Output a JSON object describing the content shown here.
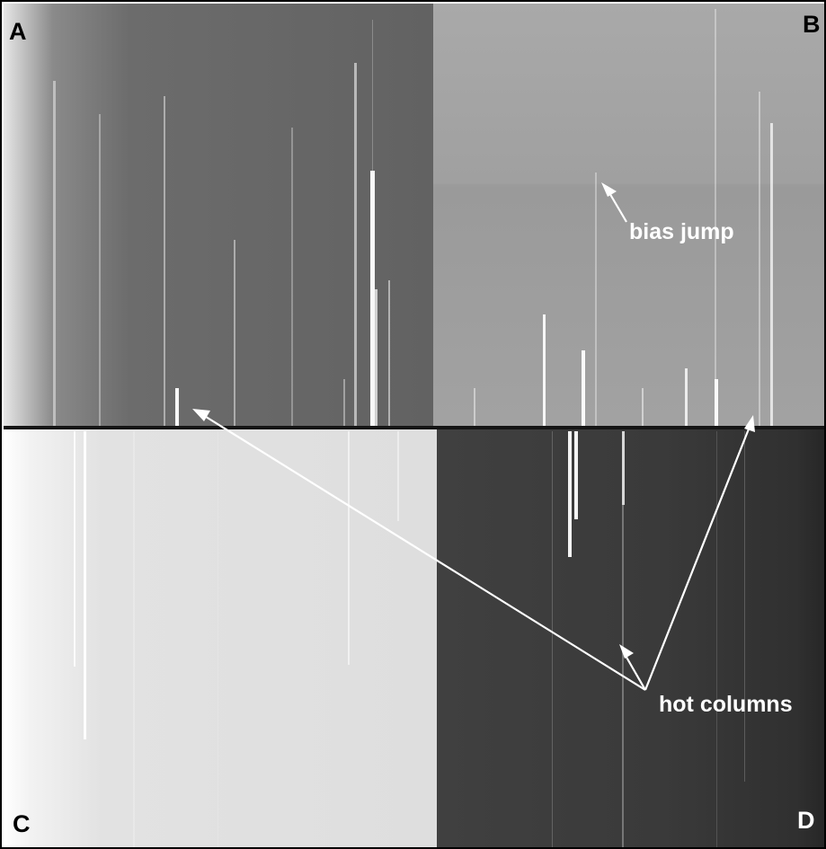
{
  "quadrants": {
    "a_label": "A",
    "b_label": "B",
    "c_label": "C",
    "d_label": "D"
  },
  "annotations": {
    "bias_jump": "bias jump",
    "hot_columns": "hot columns"
  },
  "colors": {
    "arrow": "#ffffff",
    "divider": "#151515",
    "hot_column": "#ffffff"
  }
}
